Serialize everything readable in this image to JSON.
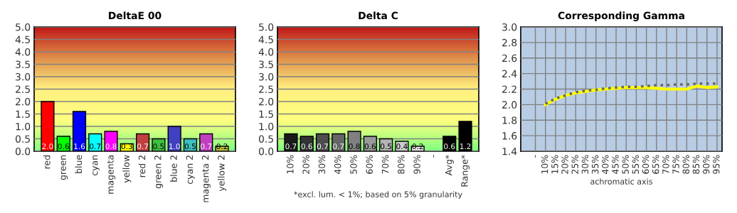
{
  "chart_data": [
    {
      "type": "bar",
      "title": "DeltaE 00",
      "categories": [
        "red",
        "green",
        "blue",
        "cyan",
        "magenta",
        "yellow",
        "red 2",
        "green 2",
        "blue 2",
        "cyan 2",
        "magenta 2",
        "yellow 2"
      ],
      "values": [
        2.0,
        0.6,
        1.6,
        0.7,
        0.8,
        0.3,
        0.7,
        0.5,
        1.0,
        0.5,
        0.7,
        0.2
      ],
      "colors": [
        "#ff0000",
        "#00ff00",
        "#0000ff",
        "#00ffff",
        "#ff00ff",
        "#ffff00",
        "#c04040",
        "#40c040",
        "#4040c0",
        "#40c0c0",
        "#c040c0",
        "#c0c040"
      ],
      "value_labels": [
        "2.0",
        "0.6",
        "1.6",
        "0.7",
        "0.8",
        "0.3",
        "0.7",
        "0.5",
        "1.0",
        "0.5",
        "0.7",
        "0.2"
      ],
      "ylim": [
        0,
        5
      ],
      "yticks": [
        {
          "value": 0,
          "label": "0.0"
        },
        0.5,
        {
          "value": 1,
          "label": "1.0"
        },
        1.5,
        {
          "value": 2,
          "label": "2.0"
        },
        2.5,
        {
          "value": 3,
          "label": "3.0"
        },
        3.5,
        {
          "value": 4,
          "label": "4.0"
        },
        4.5,
        {
          "value": 5,
          "label": "5.0"
        }
      ],
      "grid": "y"
    },
    {
      "type": "bar",
      "title": "Delta C",
      "categories": [
        "10%",
        "20%",
        "30%",
        "40%",
        "50%",
        "60%",
        "70%",
        "80%",
        "90%",
        "-",
        "Avg*",
        "Range*"
      ],
      "values": [
        0.7,
        0.6,
        0.7,
        0.7,
        0.8,
        0.6,
        0.5,
        0.4,
        0.2,
        null,
        0.6,
        1.2
      ],
      "colors": [
        "#1a1a1a",
        "#333333",
        "#4d4d4d",
        "#666666",
        "#808080",
        "#999999",
        "#b3b3b3",
        "#cccccc",
        "#e6e6e6",
        "#000000",
        "#000000",
        "#000000"
      ],
      "value_labels": [
        "0.7",
        "0.6",
        "0.7",
        "0.7",
        "0.8",
        "0.6",
        "0.5",
        "0.4",
        "0.2",
        null,
        "0.6",
        "1.2"
      ],
      "xlabel": "*excl. lum. < 1%; based on 5% granularity",
      "ylim": [
        0,
        5
      ],
      "yticks": [
        {
          "value": 0,
          "label": "0.0"
        },
        0.5,
        {
          "value": 1,
          "label": "1.0"
        },
        1.5,
        {
          "value": 2,
          "label": "2.0"
        },
        2.5,
        {
          "value": 3,
          "label": "3.0"
        },
        3.5,
        {
          "value": 4,
          "label": "4.0"
        },
        4.5,
        {
          "value": 5,
          "label": "5.0"
        }
      ],
      "grid": "y"
    },
    {
      "type": "line",
      "title": "Corresponding Gamma",
      "xlabel": "achromatic axis",
      "categories": [
        "-",
        "10%",
        "15%",
        "20%",
        "25%",
        "30%",
        "35%",
        "40%",
        "45%",
        "50%",
        "55%",
        "60%",
        "65%",
        "70%",
        "75%",
        "80%",
        "85%",
        "90%",
        "95%"
      ],
      "series": [
        {
          "color": "#ffff00",
          "line_style": "solid",
          "values": [
            null,
            2.0,
            2.07,
            2.12,
            2.15,
            2.17,
            2.19,
            2.2,
            2.21,
            2.22,
            2.22,
            2.22,
            2.21,
            2.2,
            2.2,
            2.2,
            2.24,
            2.22,
            2.23
          ]
        },
        {
          "color": "#666666",
          "line_style": "dotted",
          "values": [
            null,
            2.01,
            2.08,
            2.12,
            2.16,
            2.18,
            2.19,
            2.21,
            2.22,
            2.23,
            2.23,
            2.24,
            2.25,
            2.25,
            2.26,
            2.26,
            2.27,
            2.27,
            2.27
          ]
        }
      ],
      "ylim": [
        1.4,
        3.0
      ],
      "yticks": [
        1.4,
        1.6,
        1.8,
        {
          "value": 2.0,
          "label": "2.0"
        },
        2.2,
        2.4,
        2.6,
        2.8,
        {
          "value": 3.0,
          "label": "3.0"
        }
      ],
      "grid": true
    }
  ]
}
